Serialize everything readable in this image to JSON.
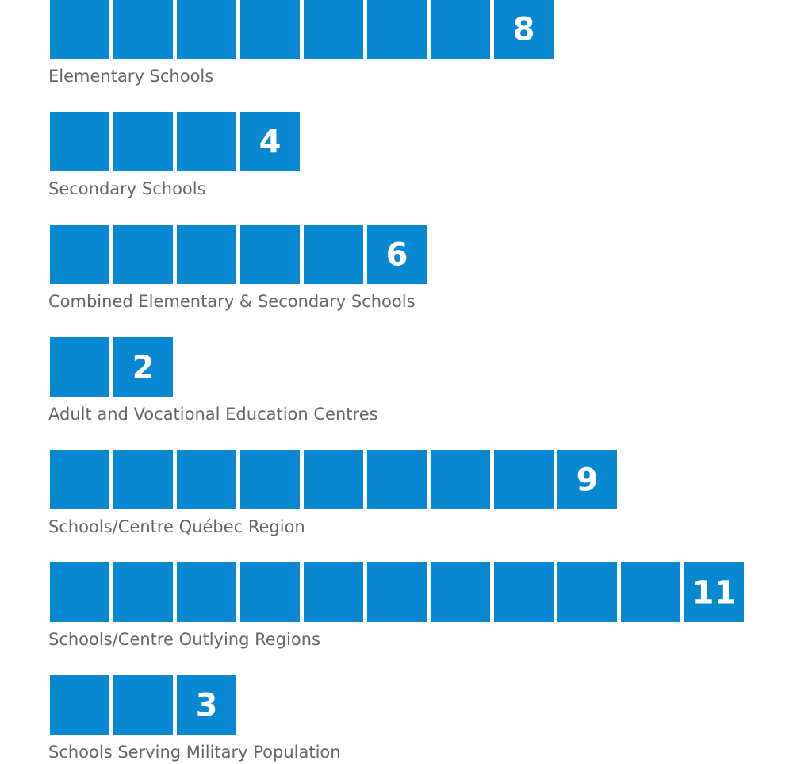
{
  "chart_data": {
    "type": "pictograph",
    "color": "#0888d0",
    "categories": [
      "Elementary Schools",
      "Secondary Schools",
      "Combined Elementary & Secondary Schools",
      "Adult and Vocational Education Centres",
      "Schools/Centre Québec Region",
      "Schools/Centre Outlying Regions",
      "Schools Serving Military Population"
    ],
    "values": [
      8,
      4,
      6,
      2,
      9,
      11,
      3
    ]
  }
}
